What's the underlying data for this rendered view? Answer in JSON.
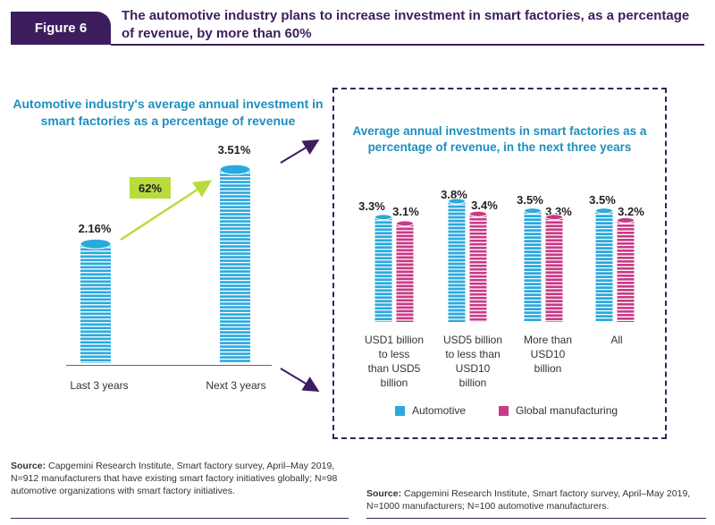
{
  "figure": {
    "badge": "Figure 6",
    "title": "The automotive industry plans to increase investment in smart factories, as a percentage of revenue, by more than 60%"
  },
  "colors": {
    "automotive": "#2aa9dd",
    "global": "#c83a85",
    "brand": "#3d1d5e",
    "growth": "#b8dc3c"
  },
  "chart_data": [
    {
      "type": "bar",
      "title": "Automotive industry's average annual investment in smart factories as a percentage of revenue",
      "categories": [
        "Last 3 years",
        "Next 3 years"
      ],
      "values": [
        2.16,
        3.51
      ],
      "value_labels": [
        "2.16%",
        "3.51%"
      ],
      "growth_label": "62%",
      "ylim": [
        0,
        3.6
      ]
    },
    {
      "type": "bar",
      "title": "Average annual investments in smart factories as a percentage of revenue, in the next three years",
      "categories": [
        [
          "USD1 billion",
          "to less",
          "than USD5",
          "billion"
        ],
        [
          "USD5 billion",
          "to less than",
          "USD10",
          "billion"
        ],
        [
          "More than",
          "USD10",
          "billion"
        ],
        [
          "All"
        ]
      ],
      "series": [
        {
          "name": "Automotive",
          "values": [
            3.3,
            3.8,
            3.5,
            3.5
          ],
          "labels": [
            "3.3%",
            "3.8%",
            "3.5%",
            "3.5%"
          ]
        },
        {
          "name": "Global manufacturing",
          "values": [
            3.1,
            3.4,
            3.3,
            3.2
          ],
          "labels": [
            "3.1%",
            "3.4%",
            "3.3%",
            "3.2%"
          ]
        }
      ],
      "ylim": [
        0,
        3.8
      ]
    }
  ],
  "sources": {
    "label": "Source:",
    "left": "Capgemini Research Institute, Smart factory survey, April–May 2019, N=912 manufacturers that have existing smart factory initiatives globally; N=98 automotive organizations with smart factory initiatives.",
    "right": "Capgemini Research Institute, Smart factory survey, April–May 2019, N=1000 manufacturers; N=100 automotive manufacturers."
  }
}
